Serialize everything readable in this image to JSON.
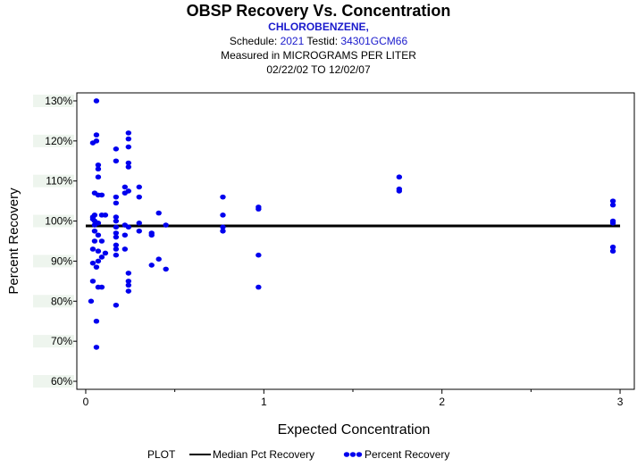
{
  "header": {
    "title": "OBSP Recovery Vs. Concentration",
    "subtitle": "CHLOROBENZENE,",
    "schedule_label": "Schedule:",
    "schedule_value": "2021",
    "testid_label": "Testid:",
    "testid_value": "34301GCM66",
    "measured": "Measured in  MICROGRAMS PER LITER",
    "date_range": "02/22/02 TO 12/02/07"
  },
  "colors": {
    "points": "#0000ee",
    "median_line": "#000000",
    "axis": "#000000",
    "tick_label_bg": "#eef5ee"
  },
  "chart_data": {
    "type": "scatter",
    "title": "OBSP Recovery Vs. Concentration",
    "xlabel": "Expected Concentration",
    "ylabel": "Percent Recovery",
    "xlim": [
      -0.05,
      3.08
    ],
    "ylim": [
      58,
      132
    ],
    "x_ticks": [
      0,
      1,
      2,
      3
    ],
    "x_tick_labels": [
      "0",
      "1",
      "2",
      "3"
    ],
    "y_ticks": [
      60,
      70,
      80,
      90,
      100,
      110,
      120,
      130
    ],
    "y_tick_labels": [
      "60%",
      "70%",
      "80%",
      "90%",
      "100%",
      "110%",
      "120%",
      "130%"
    ],
    "median": 98.8,
    "legend": {
      "label": "PLOT",
      "entries": [
        "Median Pct Recovery",
        "Percent Recovery"
      ],
      "position": "bottom"
    },
    "series": [
      {
        "name": "Percent Recovery",
        "points": [
          [
            0.06,
            130
          ],
          [
            0.06,
            121.5
          ],
          [
            0.06,
            120
          ],
          [
            0.04,
            119.5
          ],
          [
            0.07,
            114
          ],
          [
            0.07,
            113
          ],
          [
            0.07,
            111
          ],
          [
            0.05,
            107
          ],
          [
            0.07,
            106.5
          ],
          [
            0.09,
            106.5
          ],
          [
            0.04,
            101
          ],
          [
            0.05,
            101.5
          ],
          [
            0.04,
            100.5
          ],
          [
            0.05,
            100
          ],
          [
            0.06,
            99.5
          ],
          [
            0.07,
            99.5
          ],
          [
            0.05,
            99
          ],
          [
            0.09,
            101.5
          ],
          [
            0.11,
            101.5
          ],
          [
            0.05,
            97.5
          ],
          [
            0.07,
            96.5
          ],
          [
            0.05,
            95
          ],
          [
            0.09,
            95
          ],
          [
            0.04,
            93
          ],
          [
            0.07,
            92.5
          ],
          [
            0.11,
            92
          ],
          [
            0.04,
            89.5
          ],
          [
            0.07,
            90
          ],
          [
            0.06,
            88.5
          ],
          [
            0.09,
            91
          ],
          [
            0.04,
            85
          ],
          [
            0.07,
            83.5
          ],
          [
            0.09,
            83.5
          ],
          [
            0.03,
            80
          ],
          [
            0.06,
            75
          ],
          [
            0.06,
            68.5
          ],
          [
            0.17,
            118
          ],
          [
            0.17,
            115
          ],
          [
            0.17,
            106
          ],
          [
            0.17,
            104.5
          ],
          [
            0.17,
            101
          ],
          [
            0.17,
            100
          ],
          [
            0.17,
            98.5
          ],
          [
            0.17,
            97
          ],
          [
            0.17,
            96
          ],
          [
            0.17,
            94
          ],
          [
            0.17,
            93
          ],
          [
            0.17,
            91.5
          ],
          [
            0.17,
            79
          ],
          [
            0.24,
            122
          ],
          [
            0.24,
            120.5
          ],
          [
            0.24,
            118.5
          ],
          [
            0.24,
            114.5
          ],
          [
            0.24,
            113.5
          ],
          [
            0.22,
            108.5
          ],
          [
            0.24,
            107.5
          ],
          [
            0.22,
            107
          ],
          [
            0.22,
            99
          ],
          [
            0.24,
            98.5
          ],
          [
            0.22,
            96.5
          ],
          [
            0.22,
            93
          ],
          [
            0.24,
            87
          ],
          [
            0.24,
            85
          ],
          [
            0.24,
            84
          ],
          [
            0.24,
            82.5
          ],
          [
            0.3,
            108.5
          ],
          [
            0.3,
            106
          ],
          [
            0.3,
            99.5
          ],
          [
            0.3,
            97.5
          ],
          [
            0.37,
            97
          ],
          [
            0.37,
            96.5
          ],
          [
            0.37,
            89
          ],
          [
            0.41,
            102
          ],
          [
            0.41,
            90.5
          ],
          [
            0.45,
            99
          ],
          [
            0.45,
            88
          ],
          [
            0.77,
            106
          ],
          [
            0.77,
            101.5
          ],
          [
            0.77,
            98.5
          ],
          [
            0.77,
            97.5
          ],
          [
            0.97,
            103.5
          ],
          [
            0.97,
            103
          ],
          [
            0.97,
            91.5
          ],
          [
            0.97,
            83.5
          ],
          [
            1.76,
            111
          ],
          [
            1.76,
            108
          ],
          [
            1.76,
            107.5
          ],
          [
            2.96,
            105
          ],
          [
            2.96,
            104
          ],
          [
            2.96,
            100
          ],
          [
            2.96,
            99.5
          ],
          [
            2.96,
            93.5
          ],
          [
            2.96,
            92.5
          ]
        ]
      }
    ]
  }
}
